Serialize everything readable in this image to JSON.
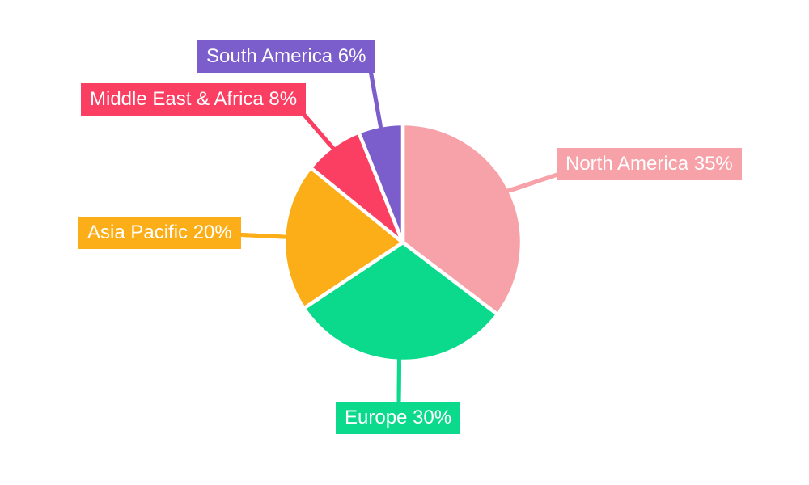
{
  "chart_data": {
    "type": "pie",
    "title": "",
    "background": "#ffffff",
    "direction": "clockwise",
    "start_angle": "top",
    "legend": "none",
    "unit": "%",
    "categories": [
      "North America",
      "Europe",
      "Asia Pacific",
      "Middle East & Africa",
      "South America"
    ],
    "values": [
      35,
      30,
      20,
      8,
      6
    ],
    "colors": [
      "#F7A1A8",
      "#0BD98B",
      "#FBAE17",
      "#FA3F63",
      "#7B5ECB"
    ],
    "label_text_color": "#ffffff",
    "slice_gap_color": "#ffffff",
    "labels": [
      {
        "text": "North America 35%"
      },
      {
        "text": "Europe 30%"
      },
      {
        "text": "Asia Pacific 20%"
      },
      {
        "text": "Middle East & Africa 8%"
      },
      {
        "text": "South America 6%"
      }
    ]
  }
}
